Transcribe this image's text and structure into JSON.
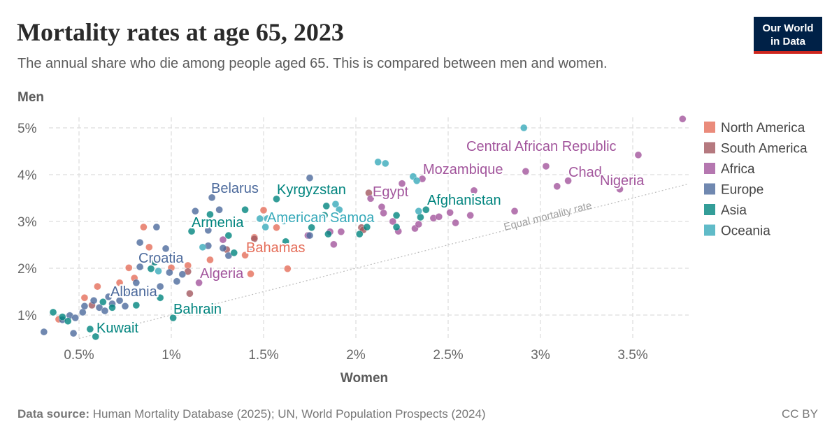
{
  "header": {
    "title": "Mortality rates at age 65, 2023",
    "subtitle": "The annual share who die among people aged 65. This is compared between men and women.",
    "logo_text": [
      "Our World",
      "in Data"
    ]
  },
  "footer": {
    "source_label": "Data source:",
    "source_text": " Human Mortality Database (2025); UN, World Population Prospects (2024)",
    "license": "CC BY"
  },
  "chart_data": {
    "type": "scatter",
    "xlabel": "Women",
    "ylabel": "Men",
    "xlim": [
      0.3,
      3.8
    ],
    "ylim": [
      0.5,
      5.2
    ],
    "x_ticks": [
      "0.5%",
      "1%",
      "1.5%",
      "2%",
      "2.5%",
      "3%",
      "3.5%"
    ],
    "x_tick_values": [
      0.5,
      1,
      1.5,
      2,
      2.5,
      3,
      3.5
    ],
    "y_ticks": [
      "1%",
      "2%",
      "3%",
      "4%",
      "5%"
    ],
    "y_tick_values": [
      1,
      2,
      3,
      4,
      5
    ],
    "grid": true,
    "legend_position": "right",
    "reference_line": {
      "label": "Equal mortality rate",
      "equation": "y = x"
    },
    "series": [
      {
        "name": "North America",
        "color": "#E56E5A",
        "points": [
          [
            0.39,
            0.91
          ],
          [
            0.53,
            1.37
          ],
          [
            0.6,
            1.61
          ],
          [
            0.72,
            1.69
          ],
          [
            0.8,
            1.79
          ],
          [
            0.85,
            2.88
          ],
          [
            0.88,
            2.45
          ],
          [
            1.0,
            2.01
          ],
          [
            1.09,
            2.06
          ],
          [
            1.21,
            2.18
          ],
          [
            1.4,
            2.28
          ],
          [
            1.43,
            1.88
          ],
          [
            1.5,
            3.24
          ],
          [
            1.57,
            2.87
          ],
          [
            1.63,
            1.99
          ],
          [
            1.56,
            2.46
          ],
          [
            1.45,
            2.66
          ],
          [
            0.77,
            2.01
          ]
        ]
      },
      {
        "name": "South America",
        "color": "#A2585F",
        "points": [
          [
            0.57,
            1.21
          ],
          [
            1.09,
            1.93
          ],
          [
            1.1,
            1.46
          ],
          [
            1.3,
            2.4
          ],
          [
            1.45,
            2.63
          ],
          [
            2.07,
            3.61
          ],
          [
            2.03,
            2.87
          ],
          [
            2.04,
            2.82
          ]
        ]
      },
      {
        "name": "Africa",
        "color": "#A2559C",
        "points": [
          [
            0.9,
            2.15
          ],
          [
            1.15,
            1.69
          ],
          [
            1.28,
            2.61
          ],
          [
            1.74,
            2.7
          ],
          [
            1.86,
            2.78
          ],
          [
            1.88,
            2.51
          ],
          [
            1.92,
            2.78
          ],
          [
            2.08,
            3.49
          ],
          [
            2.14,
            3.31
          ],
          [
            2.15,
            3.18
          ],
          [
            2.2,
            3.0
          ],
          [
            2.23,
            2.79
          ],
          [
            2.25,
            3.81
          ],
          [
            2.32,
            2.85
          ],
          [
            2.34,
            2.94
          ],
          [
            2.36,
            3.91
          ],
          [
            2.42,
            3.07
          ],
          [
            2.45,
            3.1
          ],
          [
            2.51,
            3.19
          ],
          [
            2.54,
            2.97
          ],
          [
            2.62,
            3.13
          ],
          [
            2.64,
            3.66
          ],
          [
            2.86,
            3.22
          ],
          [
            2.92,
            4.07
          ],
          [
            3.03,
            4.18
          ],
          [
            3.09,
            3.75
          ],
          [
            3.15,
            3.87
          ],
          [
            3.43,
            3.69
          ],
          [
            3.53,
            4.42
          ],
          [
            3.77,
            5.19
          ]
        ]
      },
      {
        "name": "Europe",
        "color": "#4C6A9C",
        "points": [
          [
            0.31,
            0.64
          ],
          [
            0.47,
            0.61
          ],
          [
            0.41,
            0.9
          ],
          [
            0.45,
            0.99
          ],
          [
            0.48,
            0.94
          ],
          [
            0.52,
            1.06
          ],
          [
            0.53,
            1.19
          ],
          [
            0.58,
            1.31
          ],
          [
            0.61,
            1.16
          ],
          [
            0.64,
            1.09
          ],
          [
            0.66,
            1.39
          ],
          [
            0.68,
            1.24
          ],
          [
            0.72,
            1.31
          ],
          [
            0.75,
            1.19
          ],
          [
            0.77,
            1.49
          ],
          [
            0.81,
            1.69
          ],
          [
            0.83,
            2.55
          ],
          [
            0.83,
            2.03
          ],
          [
            0.92,
            2.88
          ],
          [
            0.97,
            2.42
          ],
          [
            0.99,
            1.91
          ],
          [
            0.94,
            1.61
          ],
          [
            1.03,
            1.72
          ],
          [
            1.06,
            1.87
          ],
          [
            1.13,
            3.22
          ],
          [
            1.2,
            2.81
          ],
          [
            1.2,
            2.48
          ],
          [
            1.26,
            3.25
          ],
          [
            1.22,
            3.51
          ],
          [
            1.28,
            2.43
          ],
          [
            1.31,
            2.27
          ],
          [
            1.75,
            2.7
          ],
          [
            1.75,
            3.93
          ],
          [
            1.43,
            2.42
          ]
        ]
      },
      {
        "name": "Asia",
        "color": "#00847E",
        "points": [
          [
            0.36,
            1.06
          ],
          [
            0.41,
            0.96
          ],
          [
            0.44,
            0.87
          ],
          [
            0.56,
            0.7
          ],
          [
            0.59,
            0.54
          ],
          [
            0.63,
            1.28
          ],
          [
            0.68,
            1.16
          ],
          [
            0.78,
            1.49
          ],
          [
            0.81,
            1.21
          ],
          [
            0.89,
            1.99
          ],
          [
            0.91,
            2.13
          ],
          [
            0.94,
            1.37
          ],
          [
            1.01,
            0.94
          ],
          [
            1.11,
            2.79
          ],
          [
            1.21,
            3.15
          ],
          [
            1.31,
            2.7
          ],
          [
            1.34,
            2.33
          ],
          [
            1.4,
            3.25
          ],
          [
            1.57,
            3.48
          ],
          [
            1.62,
            2.57
          ],
          [
            1.76,
            2.87
          ],
          [
            1.84,
            3.33
          ],
          [
            1.83,
            3.13
          ],
          [
            2.02,
            2.73
          ],
          [
            2.06,
            2.88
          ],
          [
            2.22,
            2.88
          ],
          [
            2.22,
            3.13
          ],
          [
            2.35,
            3.09
          ],
          [
            2.38,
            3.25
          ],
          [
            1.85,
            2.73
          ]
        ]
      },
      {
        "name": "Oceania",
        "color": "#38AABA",
        "points": [
          [
            1.48,
            3.06
          ],
          [
            1.52,
            3.06
          ],
          [
            1.51,
            2.88
          ],
          [
            1.61,
            3.01
          ],
          [
            1.89,
            3.37
          ],
          [
            1.91,
            3.25
          ],
          [
            2.12,
            4.27
          ],
          [
            2.16,
            4.24
          ],
          [
            2.31,
            3.96
          ],
          [
            2.33,
            3.87
          ],
          [
            2.34,
            3.22
          ],
          [
            2.91,
            5.0
          ],
          [
            0.93,
            1.94
          ],
          [
            1.17,
            2.45
          ]
        ]
      }
    ],
    "labels": [
      {
        "country": "Belarus",
        "region": "Europe"
      },
      {
        "country": "Kyrgyzstan",
        "region": "Asia"
      },
      {
        "country": "Egypt",
        "region": "Africa"
      },
      {
        "country": "Mozambique",
        "region": "Africa"
      },
      {
        "country": "Central African Republic",
        "region": "Africa"
      },
      {
        "country": "Chad",
        "region": "Africa"
      },
      {
        "country": "Nigeria",
        "region": "Africa"
      },
      {
        "country": "Afghanistan",
        "region": "Asia"
      },
      {
        "country": "Armenia",
        "region": "Asia"
      },
      {
        "country": "American Samoa",
        "region": "Oceania"
      },
      {
        "country": "Bahamas",
        "region": "North America"
      },
      {
        "country": "Croatia",
        "region": "Europe"
      },
      {
        "country": "Algeria",
        "region": "Africa"
      },
      {
        "country": "Albania",
        "region": "Europe"
      },
      {
        "country": "Bahrain",
        "region": "Asia"
      },
      {
        "country": "Kuwait",
        "region": "Asia"
      }
    ]
  }
}
